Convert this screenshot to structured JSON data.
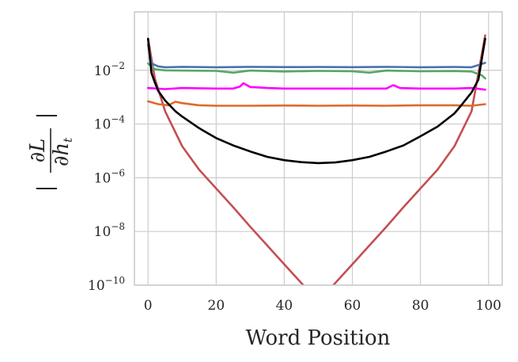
{
  "chart_data": {
    "type": "line",
    "title": "",
    "xlabel": "Word Position",
    "ylabel": "|∂L/∂h_t|",
    "xlim": [
      -4,
      104
    ],
    "ylim": [
      1e-10,
      1.5
    ],
    "yscale": "log",
    "grid": true,
    "legend": "none",
    "x_ticks": [
      0,
      20,
      40,
      60,
      80,
      100
    ],
    "y_ticks": [
      {
        "value": 1e-10,
        "exp": "−10"
      },
      {
        "value": 1e-08,
        "exp": "−8"
      },
      {
        "value": 1e-06,
        "exp": "−6"
      },
      {
        "value": 0.0001,
        "exp": "−4"
      },
      {
        "value": 0.01,
        "exp": "−2"
      }
    ],
    "series": [
      {
        "color": "#c44e52",
        "x": [
          0,
          2,
          5,
          10,
          15,
          20,
          25,
          30,
          35,
          40,
          45,
          50,
          55,
          60,
          65,
          70,
          75,
          80,
          85,
          90,
          95,
          99
        ],
        "y": [
          0.15,
          0.005,
          0.0003,
          1.5e-05,
          2e-06,
          4e-07,
          8e-08,
          1.5e-08,
          3e-09,
          6e-10,
          1.2e-10,
          2.5e-11,
          1.2e-10,
          6e-10,
          3e-09,
          1.5e-08,
          8e-08,
          4e-07,
          2e-06,
          1.5e-05,
          0.0003,
          0.2
        ]
      },
      {
        "color": "#dd6a2a",
        "x": [
          0,
          3,
          6,
          8,
          10,
          15,
          20,
          30,
          40,
          50,
          60,
          70,
          80,
          90,
          95,
          99
        ],
        "y": [
          0.0007,
          0.00055,
          0.0005,
          0.00068,
          0.0006,
          0.0005,
          0.00048,
          0.00048,
          0.00049,
          0.00048,
          0.00049,
          0.00048,
          0.0005,
          0.0005,
          0.00048,
          0.00055
        ]
      },
      {
        "color": "#ff00ff",
        "x": [
          0,
          5,
          10,
          20,
          25,
          27,
          28,
          30,
          35,
          40,
          50,
          60,
          70,
          72,
          74,
          80,
          90,
          95,
          99
        ],
        "y": [
          0.0022,
          0.002,
          0.0022,
          0.0021,
          0.0021,
          0.0025,
          0.0033,
          0.0024,
          0.0022,
          0.0021,
          0.0021,
          0.0021,
          0.0021,
          0.0028,
          0.0022,
          0.0021,
          0.0021,
          0.0022,
          0.0019
        ]
      },
      {
        "color": "#55a868",
        "x": [
          0,
          2,
          5,
          10,
          20,
          25,
          30,
          40,
          50,
          60,
          65,
          70,
          80,
          90,
          95,
          98,
          99
        ],
        "y": [
          0.018,
          0.011,
          0.01,
          0.0098,
          0.0095,
          0.0082,
          0.0098,
          0.009,
          0.0095,
          0.0092,
          0.0082,
          0.0098,
          0.0092,
          0.0094,
          0.009,
          0.0065,
          0.005
        ]
      },
      {
        "color": "#4c72b0",
        "x": [
          0,
          1,
          3,
          5,
          10,
          20,
          30,
          40,
          50,
          60,
          70,
          80,
          90,
          95,
          99
        ],
        "y": [
          0.09,
          0.018,
          0.014,
          0.013,
          0.0135,
          0.013,
          0.0135,
          0.0132,
          0.0133,
          0.0131,
          0.0135,
          0.013,
          0.0133,
          0.013,
          0.019
        ]
      },
      {
        "color": "#000000",
        "x": [
          0,
          1,
          2,
          3,
          5,
          8,
          10,
          15,
          20,
          25,
          30,
          35,
          40,
          45,
          50,
          55,
          60,
          65,
          70,
          75,
          80,
          85,
          90,
          92,
          95,
          97,
          99
        ],
        "y": [
          0.15,
          0.008,
          0.0035,
          0.0017,
          0.00075,
          0.0003,
          0.00019,
          7e-05,
          3e-05,
          1.6e-05,
          9.5e-06,
          6e-06,
          4.5e-06,
          3.8e-06,
          3.5e-06,
          3.7e-06,
          4.5e-06,
          6e-06,
          9.5e-06,
          1.6e-05,
          3.5e-05,
          8e-05,
          0.00025,
          0.0005,
          0.0015,
          0.0045,
          0.15
        ]
      }
    ]
  }
}
